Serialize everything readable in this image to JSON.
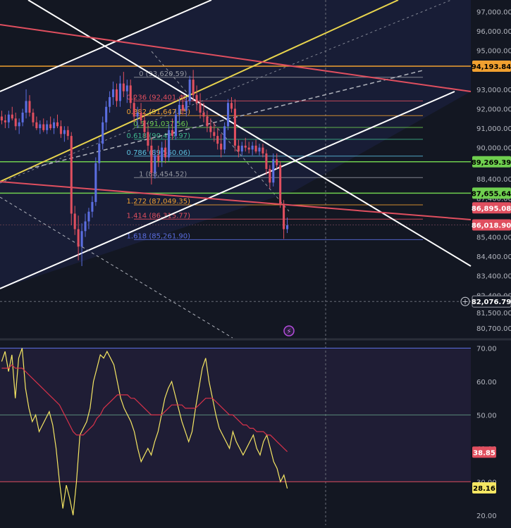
{
  "colors": {
    "background": "#131722",
    "grid": "#2a2e39",
    "up": "#5b6ee1",
    "down": "#e04f5f",
    "rsi": "#f5e663",
    "rsi_ma": "#d8324a",
    "axis_text": "#b2b5be",
    "label_text": "#ffffff"
  },
  "chart_data": [
    {
      "type": "candlestick",
      "ylim": [
        80200,
        97600
      ],
      "price_ticks": [
        "97,000.00",
        "96,000.00",
        "95,000.00",
        "93,000.00",
        "92,000.00",
        "91,000.00",
        "90,000.00",
        "88,400.00",
        "87,400.00",
        "85,400.00",
        "84,400.00",
        "83,400.00",
        "82,400.00",
        "81,500.00",
        "80,700.00"
      ],
      "tick_values": [
        97000,
        96000,
        95000,
        93000,
        92000,
        91000,
        90000,
        88400,
        87400,
        85400,
        84400,
        83400,
        82400,
        81500,
        80700
      ],
      "price_labels": [
        {
          "text": "94,193.84",
          "value": 94193.84,
          "color": "#f0a030",
          "text_color": "#000000"
        },
        {
          "text": "89,269.39",
          "value": 89269.39,
          "color": "#6fcf4f",
          "text_color": "#000000"
        },
        {
          "text": "87,655.64",
          "value": 87655.64,
          "color": "#6fcf4f",
          "text_color": "#000000"
        },
        {
          "text": "86,895.08",
          "value": 86895.08,
          "color": "#e04f5f",
          "text_color": "#ffffff"
        },
        {
          "text": "86,018.90",
          "value": 86018.9,
          "color": "#e04f5f",
          "text_color": "#ffffff"
        },
        {
          "text": "82,076.79",
          "value": 82076.79,
          "color": "#131722",
          "text_color": "#ffffff"
        }
      ],
      "fibonacci": [
        {
          "text": "0 (93,620.59)",
          "value": 93620.59,
          "color": "#9598a1"
        },
        {
          "text": "0.236 (92,401.48)",
          "value": 92401.48,
          "color": "#e04f5f"
        },
        {
          "text": "0.382 (91,647.15)",
          "value": 91647.15,
          "color": "#f0a030"
        },
        {
          "text": "0.5 (91,037.56)",
          "value": 91037.56,
          "color": "#6fcf4f"
        },
        {
          "text": "0.618 (90,427.97)",
          "value": 90427.97,
          "color": "#3fb68b"
        },
        {
          "text": "0.786 (89,560.06)",
          "value": 89560.06,
          "color": "#5bc0de"
        },
        {
          "text": "1 (88,454.52)",
          "value": 88454.52,
          "color": "#9598a1"
        },
        {
          "text": "1.272 (87,049.35)",
          "value": 87049.35,
          "color": "#f0a030"
        },
        {
          "text": "1.414 (86,315.77)",
          "value": 86315.77,
          "color": "#e04f5f"
        },
        {
          "text": "1.618 (85,261.90)",
          "value": 85261.9,
          "color": "#5b6ee1"
        }
      ],
      "candles": [
        {
          "o": 91600,
          "h": 91900,
          "l": 91200,
          "c": 91400
        },
        {
          "o": 91400,
          "h": 91700,
          "l": 91000,
          "c": 91300
        },
        {
          "o": 91300,
          "h": 91900,
          "l": 91000,
          "c": 91700
        },
        {
          "o": 91700,
          "h": 92100,
          "l": 91400,
          "c": 91500
        },
        {
          "o": 91500,
          "h": 91800,
          "l": 90900,
          "c": 91100
        },
        {
          "o": 91100,
          "h": 91500,
          "l": 90700,
          "c": 91300
        },
        {
          "o": 91300,
          "h": 92000,
          "l": 91100,
          "c": 91800
        },
        {
          "o": 91800,
          "h": 93000,
          "l": 91500,
          "c": 92400
        },
        {
          "o": 92400,
          "h": 92700,
          "l": 91600,
          "c": 91800
        },
        {
          "o": 91800,
          "h": 92000,
          "l": 91100,
          "c": 91300
        },
        {
          "o": 91300,
          "h": 91600,
          "l": 90900,
          "c": 91000
        },
        {
          "o": 91000,
          "h": 91400,
          "l": 90700,
          "c": 91200
        },
        {
          "o": 91200,
          "h": 91500,
          "l": 90800,
          "c": 90900
        },
        {
          "o": 90900,
          "h": 91400,
          "l": 90700,
          "c": 91200
        },
        {
          "o": 91200,
          "h": 91600,
          "l": 90900,
          "c": 91000
        },
        {
          "o": 91000,
          "h": 91500,
          "l": 90700,
          "c": 91300
        },
        {
          "o": 91300,
          "h": 91700,
          "l": 91000,
          "c": 91100
        },
        {
          "o": 91100,
          "h": 91400,
          "l": 90500,
          "c": 90700
        },
        {
          "o": 90700,
          "h": 91100,
          "l": 90300,
          "c": 90900
        },
        {
          "o": 90900,
          "h": 91100,
          "l": 90400,
          "c": 90600
        },
        {
          "o": 90600,
          "h": 90800,
          "l": 86000,
          "c": 86600
        },
        {
          "o": 86600,
          "h": 87000,
          "l": 85500,
          "c": 85800
        },
        {
          "o": 85800,
          "h": 86500,
          "l": 84200,
          "c": 84900
        },
        {
          "o": 84900,
          "h": 86100,
          "l": 83900,
          "c": 85700
        },
        {
          "o": 85700,
          "h": 86600,
          "l": 85400,
          "c": 86200
        },
        {
          "o": 86200,
          "h": 86900,
          "l": 85800,
          "c": 86700
        },
        {
          "o": 86700,
          "h": 87500,
          "l": 86400,
          "c": 87200
        },
        {
          "o": 87200,
          "h": 89500,
          "l": 87000,
          "c": 89200
        },
        {
          "o": 89200,
          "h": 90500,
          "l": 88800,
          "c": 90200
        },
        {
          "o": 90200,
          "h": 91600,
          "l": 89900,
          "c": 91300
        },
        {
          "o": 91300,
          "h": 92400,
          "l": 90900,
          "c": 92100
        },
        {
          "o": 92100,
          "h": 92900,
          "l": 91800,
          "c": 92600
        },
        {
          "o": 92600,
          "h": 93400,
          "l": 92200,
          "c": 93000
        },
        {
          "o": 93000,
          "h": 93300,
          "l": 92100,
          "c": 92400
        },
        {
          "o": 92400,
          "h": 93700,
          "l": 92100,
          "c": 93300
        },
        {
          "o": 93300,
          "h": 93900,
          "l": 92600,
          "c": 92900
        },
        {
          "o": 92900,
          "h": 93500,
          "l": 92300,
          "c": 93200
        },
        {
          "o": 93200,
          "h": 93500,
          "l": 92000,
          "c": 92300
        },
        {
          "o": 92300,
          "h": 92700,
          "l": 91300,
          "c": 91600
        },
        {
          "o": 91600,
          "h": 92100,
          "l": 91000,
          "c": 91800
        },
        {
          "o": 91800,
          "h": 92300,
          "l": 91200,
          "c": 91400
        },
        {
          "o": 91400,
          "h": 91800,
          "l": 90500,
          "c": 90800
        },
        {
          "o": 90800,
          "h": 91200,
          "l": 89800,
          "c": 90100
        },
        {
          "o": 90100,
          "h": 90500,
          "l": 88100,
          "c": 88700
        },
        {
          "o": 88700,
          "h": 89900,
          "l": 88400,
          "c": 89600
        },
        {
          "o": 89600,
          "h": 90100,
          "l": 89000,
          "c": 89300
        },
        {
          "o": 89300,
          "h": 90300,
          "l": 89000,
          "c": 90000
        },
        {
          "o": 90000,
          "h": 90400,
          "l": 89200,
          "c": 89500
        },
        {
          "o": 89500,
          "h": 91200,
          "l": 89300,
          "c": 90900
        },
        {
          "o": 90900,
          "h": 91500,
          "l": 90400,
          "c": 90600
        },
        {
          "o": 90600,
          "h": 92000,
          "l": 90400,
          "c": 91700
        },
        {
          "o": 91700,
          "h": 92500,
          "l": 91300,
          "c": 92200
        },
        {
          "o": 92200,
          "h": 92700,
          "l": 91700,
          "c": 91900
        },
        {
          "o": 91900,
          "h": 92600,
          "l": 91600,
          "c": 92400
        },
        {
          "o": 92400,
          "h": 93700,
          "l": 92200,
          "c": 93500
        },
        {
          "o": 93500,
          "h": 94000,
          "l": 92400,
          "c": 92700
        },
        {
          "o": 92700,
          "h": 93200,
          "l": 91900,
          "c": 92300
        },
        {
          "o": 92300,
          "h": 92800,
          "l": 91500,
          "c": 91800
        },
        {
          "o": 91800,
          "h": 92300,
          "l": 91300,
          "c": 91600
        },
        {
          "o": 91600,
          "h": 91900,
          "l": 90800,
          "c": 91100
        },
        {
          "o": 91100,
          "h": 91500,
          "l": 90500,
          "c": 90800
        },
        {
          "o": 90800,
          "h": 91300,
          "l": 90300,
          "c": 90600
        },
        {
          "o": 90600,
          "h": 91000,
          "l": 89900,
          "c": 90200
        },
        {
          "o": 90200,
          "h": 90700,
          "l": 89500,
          "c": 89900
        },
        {
          "o": 89900,
          "h": 91300,
          "l": 89700,
          "c": 91100
        },
        {
          "o": 91100,
          "h": 92500,
          "l": 90900,
          "c": 92300
        },
        {
          "o": 92300,
          "h": 92600,
          "l": 91800,
          "c": 92000
        },
        {
          "o": 92000,
          "h": 92500,
          "l": 89800,
          "c": 90100
        },
        {
          "o": 90100,
          "h": 90400,
          "l": 89500,
          "c": 89800
        },
        {
          "o": 89800,
          "h": 90300,
          "l": 89600,
          "c": 90100
        },
        {
          "o": 90100,
          "h": 90500,
          "l": 89800,
          "c": 90000
        },
        {
          "o": 90000,
          "h": 90300,
          "l": 89700,
          "c": 89900
        },
        {
          "o": 89900,
          "h": 90300,
          "l": 89600,
          "c": 90100
        },
        {
          "o": 90100,
          "h": 90400,
          "l": 89700,
          "c": 89800
        },
        {
          "o": 89800,
          "h": 90200,
          "l": 89600,
          "c": 90000
        },
        {
          "o": 90000,
          "h": 90200,
          "l": 89500,
          "c": 89700
        },
        {
          "o": 89700,
          "h": 89900,
          "l": 88600,
          "c": 88900
        },
        {
          "o": 88900,
          "h": 89100,
          "l": 87900,
          "c": 88200
        },
        {
          "o": 88200,
          "h": 89700,
          "l": 88000,
          "c": 89400
        },
        {
          "o": 89400,
          "h": 89700,
          "l": 88900,
          "c": 89100
        },
        {
          "o": 89100,
          "h": 89300,
          "l": 86900,
          "c": 87100
        },
        {
          "o": 87100,
          "h": 87300,
          "l": 85300,
          "c": 85800
        },
        {
          "o": 85800,
          "h": 86400,
          "l": 85600,
          "c": 86000
        }
      ]
    },
    {
      "type": "line",
      "name": "RSI",
      "ylim": [
        17,
        72
      ],
      "rsi_ticks": [
        "70.00",
        "60.00",
        "50.00",
        "40.00",
        "30.00",
        "20.00"
      ],
      "rsi_tick_values": [
        70,
        60,
        50,
        40,
        30,
        20
      ],
      "bands": [
        70,
        50,
        30
      ],
      "rsi_labels": [
        {
          "text": "38.85",
          "value": 38.85,
          "color": "#e04f5f",
          "text_color": "#ffffff"
        },
        {
          "text": "28.16",
          "value": 28.16,
          "color": "#f5e663",
          "text_color": "#000000"
        }
      ],
      "series": [
        {
          "values": [
            66,
            69,
            63,
            68,
            55,
            67,
            70,
            58,
            52,
            48,
            50,
            45,
            47,
            49,
            51,
            47,
            40,
            30,
            22,
            29,
            25,
            20,
            30,
            44,
            46,
            48,
            52,
            60,
            64,
            68,
            67,
            69,
            67,
            65,
            60,
            55,
            52,
            50,
            48,
            45,
            40,
            36,
            38,
            40,
            38,
            42,
            45,
            50,
            55,
            58,
            60,
            56,
            52,
            48,
            45,
            42,
            45,
            52,
            58,
            64,
            67,
            60,
            55,
            50,
            46,
            44,
            42,
            40,
            45,
            42,
            40,
            38,
            40,
            42,
            44,
            40,
            38,
            42,
            44,
            40,
            36,
            34,
            30,
            32,
            28
          ]
        },
        {
          "values": [
            64,
            64,
            64,
            65,
            64,
            64,
            64,
            63,
            62,
            61,
            60,
            59,
            58,
            57,
            56,
            55,
            54,
            53,
            51,
            49,
            47,
            45,
            44,
            44,
            44,
            45,
            46,
            47,
            49,
            50,
            52,
            53,
            54,
            55,
            56,
            56,
            56,
            56,
            55,
            55,
            54,
            53,
            52,
            51,
            50,
            50,
            50,
            50,
            51,
            52,
            53,
            53,
            53,
            53,
            52,
            52,
            52,
            52,
            53,
            54,
            55,
            55,
            55,
            54,
            53,
            52,
            51,
            50,
            50,
            49,
            48,
            47,
            47,
            46,
            46,
            45,
            45,
            45,
            44,
            44,
            43,
            42,
            41,
            40,
            39
          ]
        }
      ]
    }
  ]
}
